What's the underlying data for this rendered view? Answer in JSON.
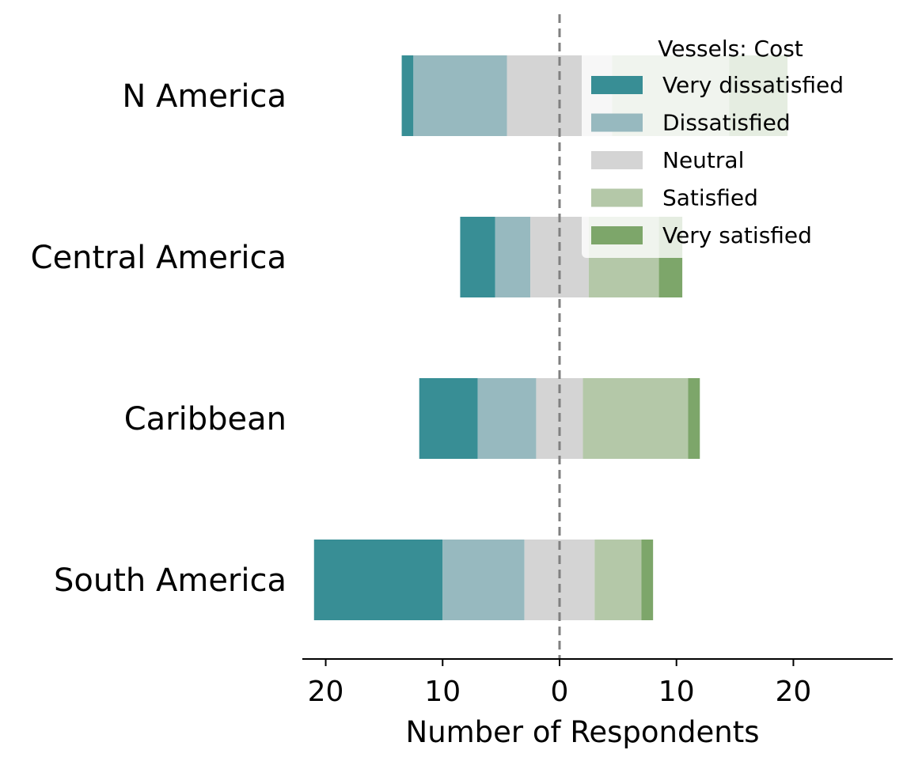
{
  "chart_data": {
    "type": "bar",
    "orientation": "horizontal",
    "stacked": "diverging",
    "categories": [
      "N America",
      "Central America",
      "Caribbean",
      "South America"
    ],
    "series": [
      {
        "name": "Very dissatisfied",
        "color": "#388e95",
        "values": [
          1,
          3,
          5,
          11
        ]
      },
      {
        "name": "Dissatisfied",
        "color": "#97b9bf",
        "values": [
          8,
          3,
          5,
          7
        ]
      },
      {
        "name": "Neutral",
        "color": "#d4d4d4",
        "values": [
          9,
          5,
          4,
          6
        ]
      },
      {
        "name": "Satisfied",
        "color": "#b4c8a8",
        "values": [
          10,
          6,
          9,
          4
        ]
      },
      {
        "name": "Very satisfied",
        "color": "#7da66a",
        "values": [
          5,
          2,
          1,
          1
        ]
      }
    ],
    "xlabel": "Number of Respondents",
    "ylabel": "",
    "xticks": [
      -20,
      -10,
      0,
      10,
      20
    ],
    "xtick_labels": [
      "20",
      "10",
      "0",
      "10",
      "20"
    ],
    "xlim": [
      -22,
      28.5
    ],
    "legend": {
      "title": "Vessels: Cost",
      "position": "top-right"
    },
    "zero_line": {
      "style": "dashed",
      "color": "#808080"
    },
    "grid": false
  }
}
